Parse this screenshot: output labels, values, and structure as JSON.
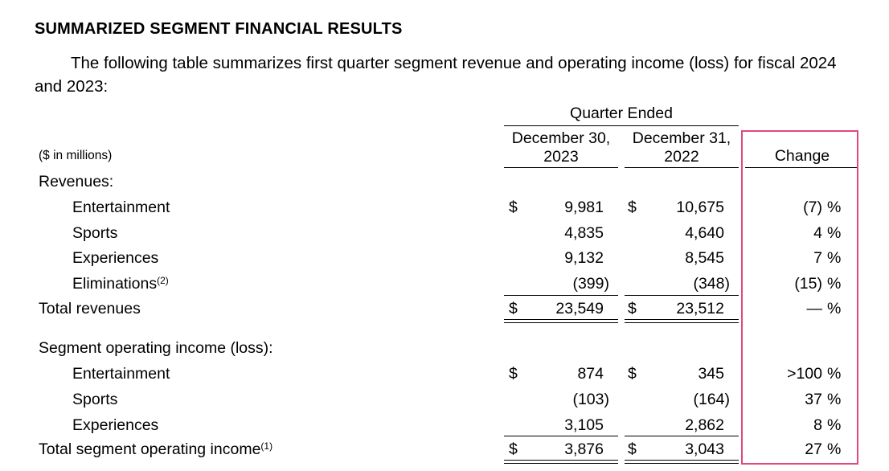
{
  "heading": "SUMMARIZED SEGMENT FINANCIAL RESULTS",
  "intro": "The following table summarizes first quarter segment revenue and operating income (loss) for fiscal 2024 and 2023:",
  "table": {
    "units_note": "($ in millions)",
    "period_header": "Quarter Ended",
    "col1_header_line1": "December 30,",
    "col1_header_line2": "2023",
    "col2_header_line1": "December 31,",
    "col2_header_line2": "2022",
    "change_header": "Change",
    "currency": "$",
    "pct": "%",
    "revenues_label": "Revenues:",
    "revenues": [
      {
        "label": "Entertainment",
        "v2023": "9,981",
        "v2022": "10,675",
        "change": "(7)"
      },
      {
        "label": "Sports",
        "v2023": "4,835",
        "v2022": "4,640",
        "change": "4"
      },
      {
        "label": "Experiences",
        "v2023": "9,132",
        "v2022": "8,545",
        "change": "7"
      },
      {
        "label": "Eliminations",
        "footnote": "(2)",
        "v2023": "(399)",
        "v2022": "(348)",
        "change": "(15)"
      }
    ],
    "total_revenues": {
      "label": "Total revenues",
      "v2023": "23,549",
      "v2022": "23,512",
      "change": "—"
    },
    "opincome_label": "Segment operating income (loss):",
    "opincome": [
      {
        "label": "Entertainment",
        "v2023": "874",
        "v2022": "345",
        "change": ">100"
      },
      {
        "label": "Sports",
        "v2023": "(103)",
        "v2022": "(164)",
        "change": "37"
      },
      {
        "label": "Experiences",
        "v2023": "3,105",
        "v2022": "2,862",
        "change": "8"
      }
    ],
    "total_opincome": {
      "label": "Total segment operating income",
      "footnote": "(1)",
      "v2023": "3,876",
      "v2022": "3,043",
      "change": "27"
    }
  },
  "highlight_color": "#e0497a"
}
